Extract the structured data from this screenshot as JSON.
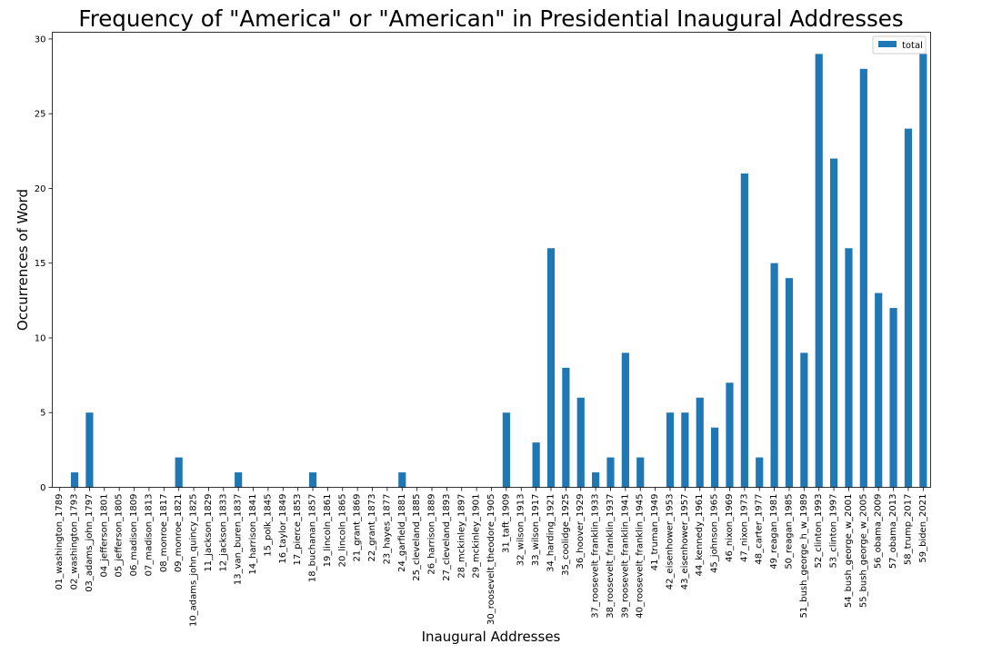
{
  "chart_data": {
    "type": "bar",
    "title": "Frequency of \"America\" or \"American\" in Presidential Inaugural Addresses",
    "xlabel": "Inaugural Addresses",
    "ylabel": "Occurrences of Word",
    "ylim": [
      0,
      30.45
    ],
    "yticks": [
      0,
      5,
      10,
      15,
      20,
      25,
      30
    ],
    "grid": false,
    "legend_position": "top-right",
    "categories": [
      "01_washington_1789",
      "02_washington_1793",
      "03_adams_john_1797",
      "04_jefferson_1801",
      "05_jefferson_1805",
      "06_madison_1809",
      "07_madison_1813",
      "08_monroe_1817",
      "09_monroe_1821",
      "10_adams_john_quincy_1825",
      "11_jackson_1829",
      "12_jackson_1833",
      "13_van_buren_1837",
      "14_harrison_1841",
      "15_polk_1845",
      "16_taylor_1849",
      "17_pierce_1853",
      "18_buchanan_1857",
      "19_lincoln_1861",
      "20_lincoln_1865",
      "21_grant_1869",
      "22_grant_1873",
      "23_hayes_1877",
      "24_garfield_1881",
      "25_cleveland_1885",
      "26_harrison_1889",
      "27_cleveland_1893",
      "28_mckinley_1897",
      "29_mckinley_1901",
      "30_roosevelt_theodore_1905",
      "31_taft_1909",
      "32_wilson_1913",
      "33_wilson_1917",
      "34_harding_1921",
      "35_coolidge_1925",
      "36_hoover_1929",
      "37_roosevelt_franklin_1933",
      "38_roosevelt_franklin_1937",
      "39_roosevelt_franklin_1941",
      "40_roosevelt_franklin_1945",
      "41_truman_1949",
      "42_eisenhower_1953",
      "43_eisenhower_1957",
      "44_kennedy_1961",
      "45_johnson_1965",
      "46_nixon_1969",
      "47_nixon_1973",
      "48_carter_1977",
      "49_reagan_1981",
      "50_reagan_1985",
      "51_bush_george_h_w_1989",
      "52_clinton_1993",
      "53_clinton_1997",
      "54_bush_george_w_2001",
      "55_bush_george_w_2005",
      "56_obama_2009",
      "57_obama_2013",
      "58_trump_2017",
      "59_biden_2021"
    ],
    "series": [
      {
        "name": "total",
        "color": "#1f77b4",
        "values": [
          0,
          1,
          5,
          0,
          0,
          0,
          0,
          0,
          2,
          0,
          0,
          0,
          1,
          0,
          0,
          0,
          0,
          1,
          0,
          0,
          0,
          0,
          0,
          1,
          0,
          0,
          0,
          0,
          0,
          0,
          5,
          0,
          3,
          16,
          8,
          6,
          1,
          2,
          9,
          2,
          0,
          5,
          5,
          6,
          4,
          7,
          21,
          2,
          15,
          14,
          9,
          29,
          22,
          16,
          28,
          13,
          12,
          24,
          29
        ]
      }
    ]
  }
}
